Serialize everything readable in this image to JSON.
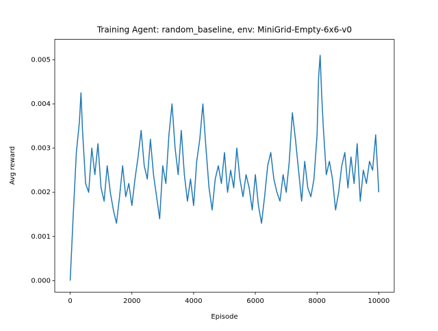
{
  "chart_data": {
    "type": "line",
    "title": "Training Agent: random_baseline, env: MiniGrid-Empty-6x6-v0",
    "x_label": "Episode",
    "y_label": "Avg reward",
    "x": [
      0,
      100,
      200,
      300,
      350,
      400,
      500,
      600,
      700,
      800,
      900,
      1000,
      1100,
      1200,
      1300,
      1400,
      1500,
      1600,
      1700,
      1800,
      1900,
      2000,
      2100,
      2200,
      2300,
      2400,
      2500,
      2600,
      2700,
      2800,
      2900,
      3000,
      3100,
      3200,
      3300,
      3400,
      3500,
      3600,
      3700,
      3800,
      3900,
      4000,
      4100,
      4200,
      4300,
      4400,
      4500,
      4600,
      4700,
      4800,
      4900,
      5000,
      5100,
      5200,
      5300,
      5400,
      5500,
      5600,
      5700,
      5800,
      5900,
      6000,
      6100,
      6200,
      6300,
      6400,
      6500,
      6600,
      6700,
      6800,
      6900,
      7000,
      7100,
      7200,
      7300,
      7400,
      7500,
      7600,
      7700,
      7800,
      7900,
      8000,
      8050,
      8100,
      8150,
      8200,
      8300,
      8400,
      8500,
      8600,
      8700,
      8800,
      8900,
      9000,
      9100,
      9200,
      9300,
      9400,
      9500,
      9600,
      9700,
      9800,
      9900,
      10000
    ],
    "series": [
      {
        "name": "Avg reward",
        "color": "#1f77b4",
        "values": [
          0.0,
          0.0015,
          0.0029,
          0.0036,
          0.00425,
          0.0034,
          0.0022,
          0.002,
          0.003,
          0.0024,
          0.0031,
          0.0021,
          0.0018,
          0.0026,
          0.002,
          0.0016,
          0.0013,
          0.0019,
          0.0026,
          0.0019,
          0.0022,
          0.0017,
          0.0023,
          0.0028,
          0.0034,
          0.0026,
          0.0023,
          0.0032,
          0.0024,
          0.0019,
          0.0014,
          0.0026,
          0.0022,
          0.0033,
          0.004,
          0.003,
          0.0024,
          0.0034,
          0.0024,
          0.0018,
          0.0023,
          0.0017,
          0.0027,
          0.0032,
          0.004,
          0.003,
          0.0021,
          0.0016,
          0.0023,
          0.0026,
          0.0022,
          0.0029,
          0.002,
          0.0025,
          0.0021,
          0.003,
          0.0023,
          0.0019,
          0.0024,
          0.0021,
          0.0016,
          0.0024,
          0.0017,
          0.0013,
          0.0019,
          0.0026,
          0.0029,
          0.0023,
          0.002,
          0.0018,
          0.0024,
          0.002,
          0.0027,
          0.0038,
          0.0032,
          0.0025,
          0.0018,
          0.0027,
          0.0021,
          0.0019,
          0.0023,
          0.0033,
          0.0046,
          0.0051,
          0.0042,
          0.0035,
          0.0024,
          0.0027,
          0.0023,
          0.0016,
          0.002,
          0.0026,
          0.0029,
          0.0021,
          0.0028,
          0.0022,
          0.0031,
          0.0018,
          0.0025,
          0.0022,
          0.0027,
          0.0025,
          0.0033,
          0.002
        ]
      }
    ],
    "xlim": [
      -500,
      10500
    ],
    "ylim": [
      -0.00026,
      0.00546
    ],
    "xticks": [
      0,
      2000,
      4000,
      6000,
      8000,
      10000
    ],
    "yticks": [
      {
        "value": 0,
        "label": "0.000"
      },
      {
        "value": 0.001,
        "label": "0.001"
      },
      {
        "value": 0.002,
        "label": "0.002"
      },
      {
        "value": 0.003,
        "label": "0.003"
      },
      {
        "value": 0.004,
        "label": "0.004"
      },
      {
        "value": 0.005,
        "label": "0.005"
      }
    ],
    "grid": false
  }
}
